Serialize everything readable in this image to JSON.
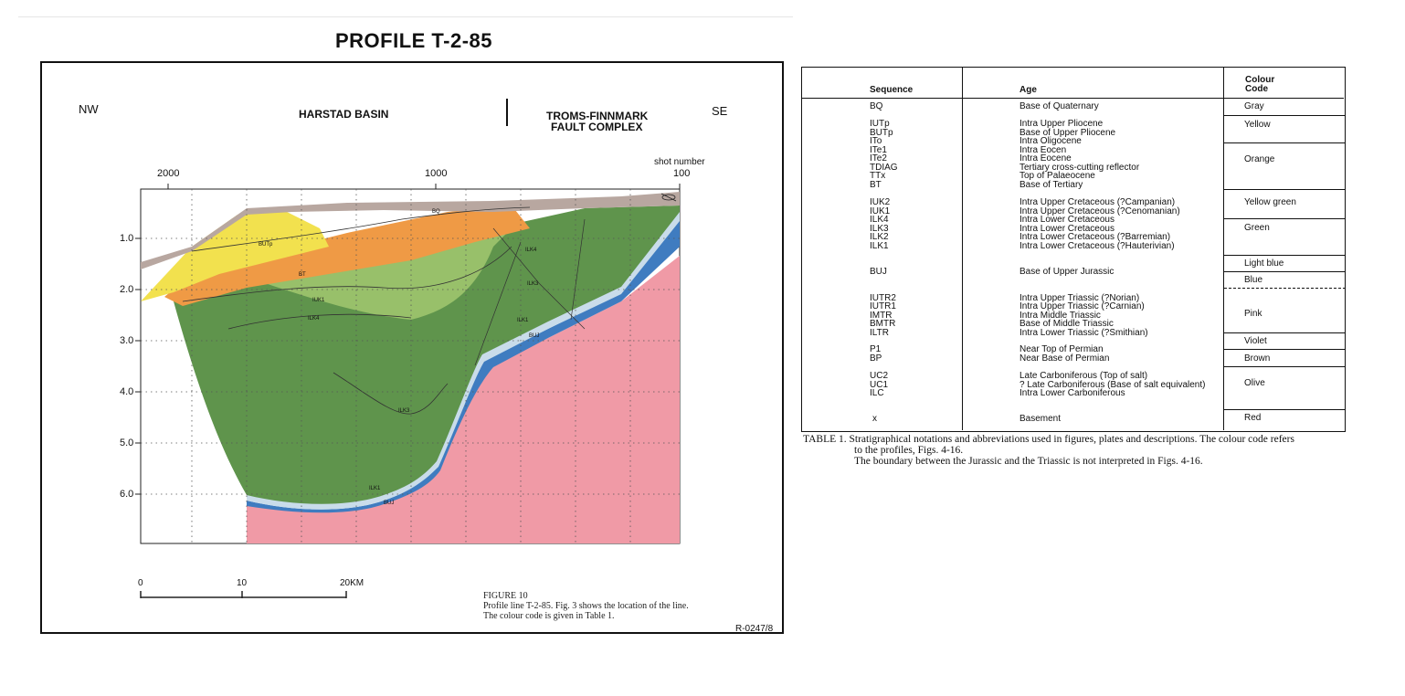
{
  "figure": {
    "title": "PROFILE T-2-85",
    "direction_left": "NW",
    "direction_right": "SE",
    "region_left": "HARSTAD BASIN",
    "region_right_1": "TROMS-FINNMARK",
    "region_right_2": "FAULT COMPLEX",
    "shot_number_label": "shot number",
    "shot_ticks": [
      "2000",
      "1000",
      "100"
    ],
    "depth_ticks": [
      "1.0",
      "2.0",
      "3.0",
      "4.0",
      "5.0",
      "6.0"
    ],
    "horizon_labels": [
      "BQ",
      "BUTp",
      "BT",
      "IUK1",
      "ILK4",
      "ILK4",
      "ILK3",
      "ILK1",
      "BUJ",
      "ILK3",
      "ILK1",
      "BUJ"
    ],
    "scale_labels": [
      "0",
      "10",
      "20KM"
    ],
    "caption": [
      "FIGURE 10",
      "Profile line T-2-85. Fig. 3 shows the location of the line.",
      "The colour code is given in Table 1."
    ],
    "ref_code": "R-0247/8",
    "colors": {
      "gray": "#b8a7a0",
      "yellow": "#f2e14e",
      "orange": "#ef9a45",
      "green": "#5f944c",
      "light_green": "#98c06a",
      "light_blue": "#c9dcea",
      "blue": "#3f7cc0",
      "pink": "#f09aa6"
    }
  },
  "table": {
    "headers": {
      "sequence": "Sequence",
      "age": "Age",
      "colour_code_1": "Colour",
      "colour_code_2": "Code"
    },
    "groups": [
      {
        "rows": [
          [
            "BQ",
            "Base of Quaternary"
          ]
        ]
      },
      {
        "rows": [
          [
            "IUTp",
            "Intra Upper Pliocene"
          ],
          [
            "BUTp",
            "Base of Upper Pliocene"
          ],
          [
            "ITo",
            "Intra Oligocene"
          ],
          [
            "ITe1",
            "Intra Eocen"
          ],
          [
            "ITe2",
            "Intra Eocene"
          ],
          [
            "TDIAG",
            "Tertiary cross-cutting reflector"
          ],
          [
            "TTx",
            "Top of Palaeocene"
          ],
          [
            "BT",
            "Base of Tertiary"
          ]
        ]
      },
      {
        "rows": [
          [
            "IUK2",
            "Intra Upper Cretaceous (?Campanian)"
          ],
          [
            "IUK1",
            "Intra Upper Cretaceous (?Cenomanian)"
          ],
          [
            "ILK4",
            "Intra Lower Cretaceous"
          ],
          [
            "ILK3",
            "Intra Lower Cretaceous"
          ],
          [
            "ILK2",
            "Intra Lower Cretaceous (?Barremian)"
          ],
          [
            "ILK1",
            "Intra Lower Cretaceous (?Hauterivian)"
          ]
        ]
      },
      {
        "rows": [
          [
            "BUJ",
            "Base of Upper Jurassic"
          ]
        ]
      },
      {
        "rows": [
          [
            "IUTR2",
            "Intra Upper Triassic (?Norian)"
          ],
          [
            "IUTR1",
            "Intra Upper Triassic (?Carnian)"
          ],
          [
            "IMTR",
            "Intra Middle Triassic"
          ],
          [
            "BMTR",
            "Base of Middle Triassic"
          ],
          [
            "ILTR",
            "Intra Lower Triassic (?Smithian)"
          ]
        ]
      },
      {
        "rows": [
          [
            "P1",
            "Near Top of Permian"
          ],
          [
            "BP",
            "Near Base of Permian"
          ]
        ]
      },
      {
        "rows": [
          [
            "UC2",
            "Late Carboniferous (Top of salt)"
          ],
          [
            "UC1",
            "? Late Carboniferous (Base of salt equivalent)"
          ],
          [
            "ILC",
            "Intra Lower Carboniferous"
          ]
        ]
      },
      {
        "rows": [
          [
            "x",
            "Basement"
          ]
        ]
      }
    ],
    "colour_codes": [
      "Gray",
      "Yellow",
      "Orange",
      "Yellow green",
      "Green",
      "Light blue",
      "Blue",
      "Pink",
      "Violet",
      "Brown",
      "Olive",
      "Red"
    ],
    "caption_1": "TABLE 1. Stratigraphical notations and abbreviations used in figures, plates and descriptions. The colour code refers",
    "caption_2": "to the profiles, Figs. 4-16.",
    "caption_3": "The boundary between the Jurassic and the Triassic is not interpreted in Figs. 4-16."
  }
}
